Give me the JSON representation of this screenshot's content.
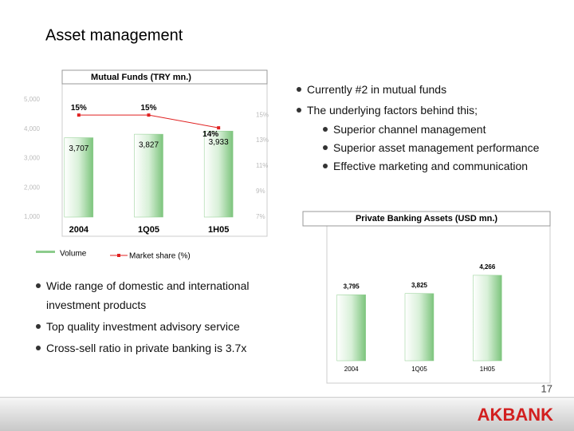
{
  "title": "Asset management",
  "top_bullets": [
    "Currently #2 in mutual funds",
    "The underlying factors behind this;"
  ],
  "sub_bullets": [
    "Superior channel management",
    "Superior asset management performance",
    "Effective marketing and communication"
  ],
  "bottom_bullets": [
    "Wide range of domestic and international investment products",
    "Top quality investment advisory service",
    "Cross-sell ratio in private banking is 3.7x"
  ],
  "page_number": "17",
  "logo": "AKBANK",
  "chart_data": [
    {
      "type": "combo",
      "title": "Mutual Funds (TRY mn.)",
      "categories": [
        "2004",
        "1Q05",
        "1H05"
      ],
      "series": [
        {
          "name": "Volume",
          "type": "bar",
          "color": "#8ccc8c",
          "values": [
            3707,
            3827,
            3933
          ],
          "value_labels": [
            "3,707",
            "3,827",
            "3,933"
          ]
        },
        {
          "name": "Market share (%)",
          "type": "line",
          "axis": "y2",
          "color": "#e02020",
          "values": [
            15,
            15,
            14
          ],
          "value_labels": [
            "15%",
            "15%",
            "14%"
          ]
        }
      ],
      "ylim": [
        1000,
        5000
      ],
      "yticks": [
        {
          "value": 1000,
          "label": "1,000"
        },
        {
          "value": 2000,
          "label": "2,000"
        },
        {
          "value": 3000,
          "label": "3,000"
        },
        {
          "value": 4000,
          "label": "4,000"
        },
        {
          "value": 5000,
          "label": "5,000"
        }
      ],
      "y2lim": [
        7,
        16.2
      ],
      "y2ticks": [
        {
          "value": 7,
          "label": "7%"
        },
        {
          "value": 9,
          "label": "9%"
        },
        {
          "value": 11,
          "label": "11%"
        },
        {
          "value": 13,
          "label": "13%"
        },
        {
          "value": 15,
          "label": "15%"
        }
      ]
    },
    {
      "type": "bar",
      "title": "Private Banking Assets (USD mn.)",
      "categories": [
        "2004",
        "1Q05",
        "1H05"
      ],
      "values": [
        3795,
        3825,
        4266
      ],
      "value_labels": [
        "3,795",
        "3,825",
        "4,266"
      ],
      "color": "#8ccc8c",
      "ylim": [
        2200,
        4650
      ]
    }
  ]
}
